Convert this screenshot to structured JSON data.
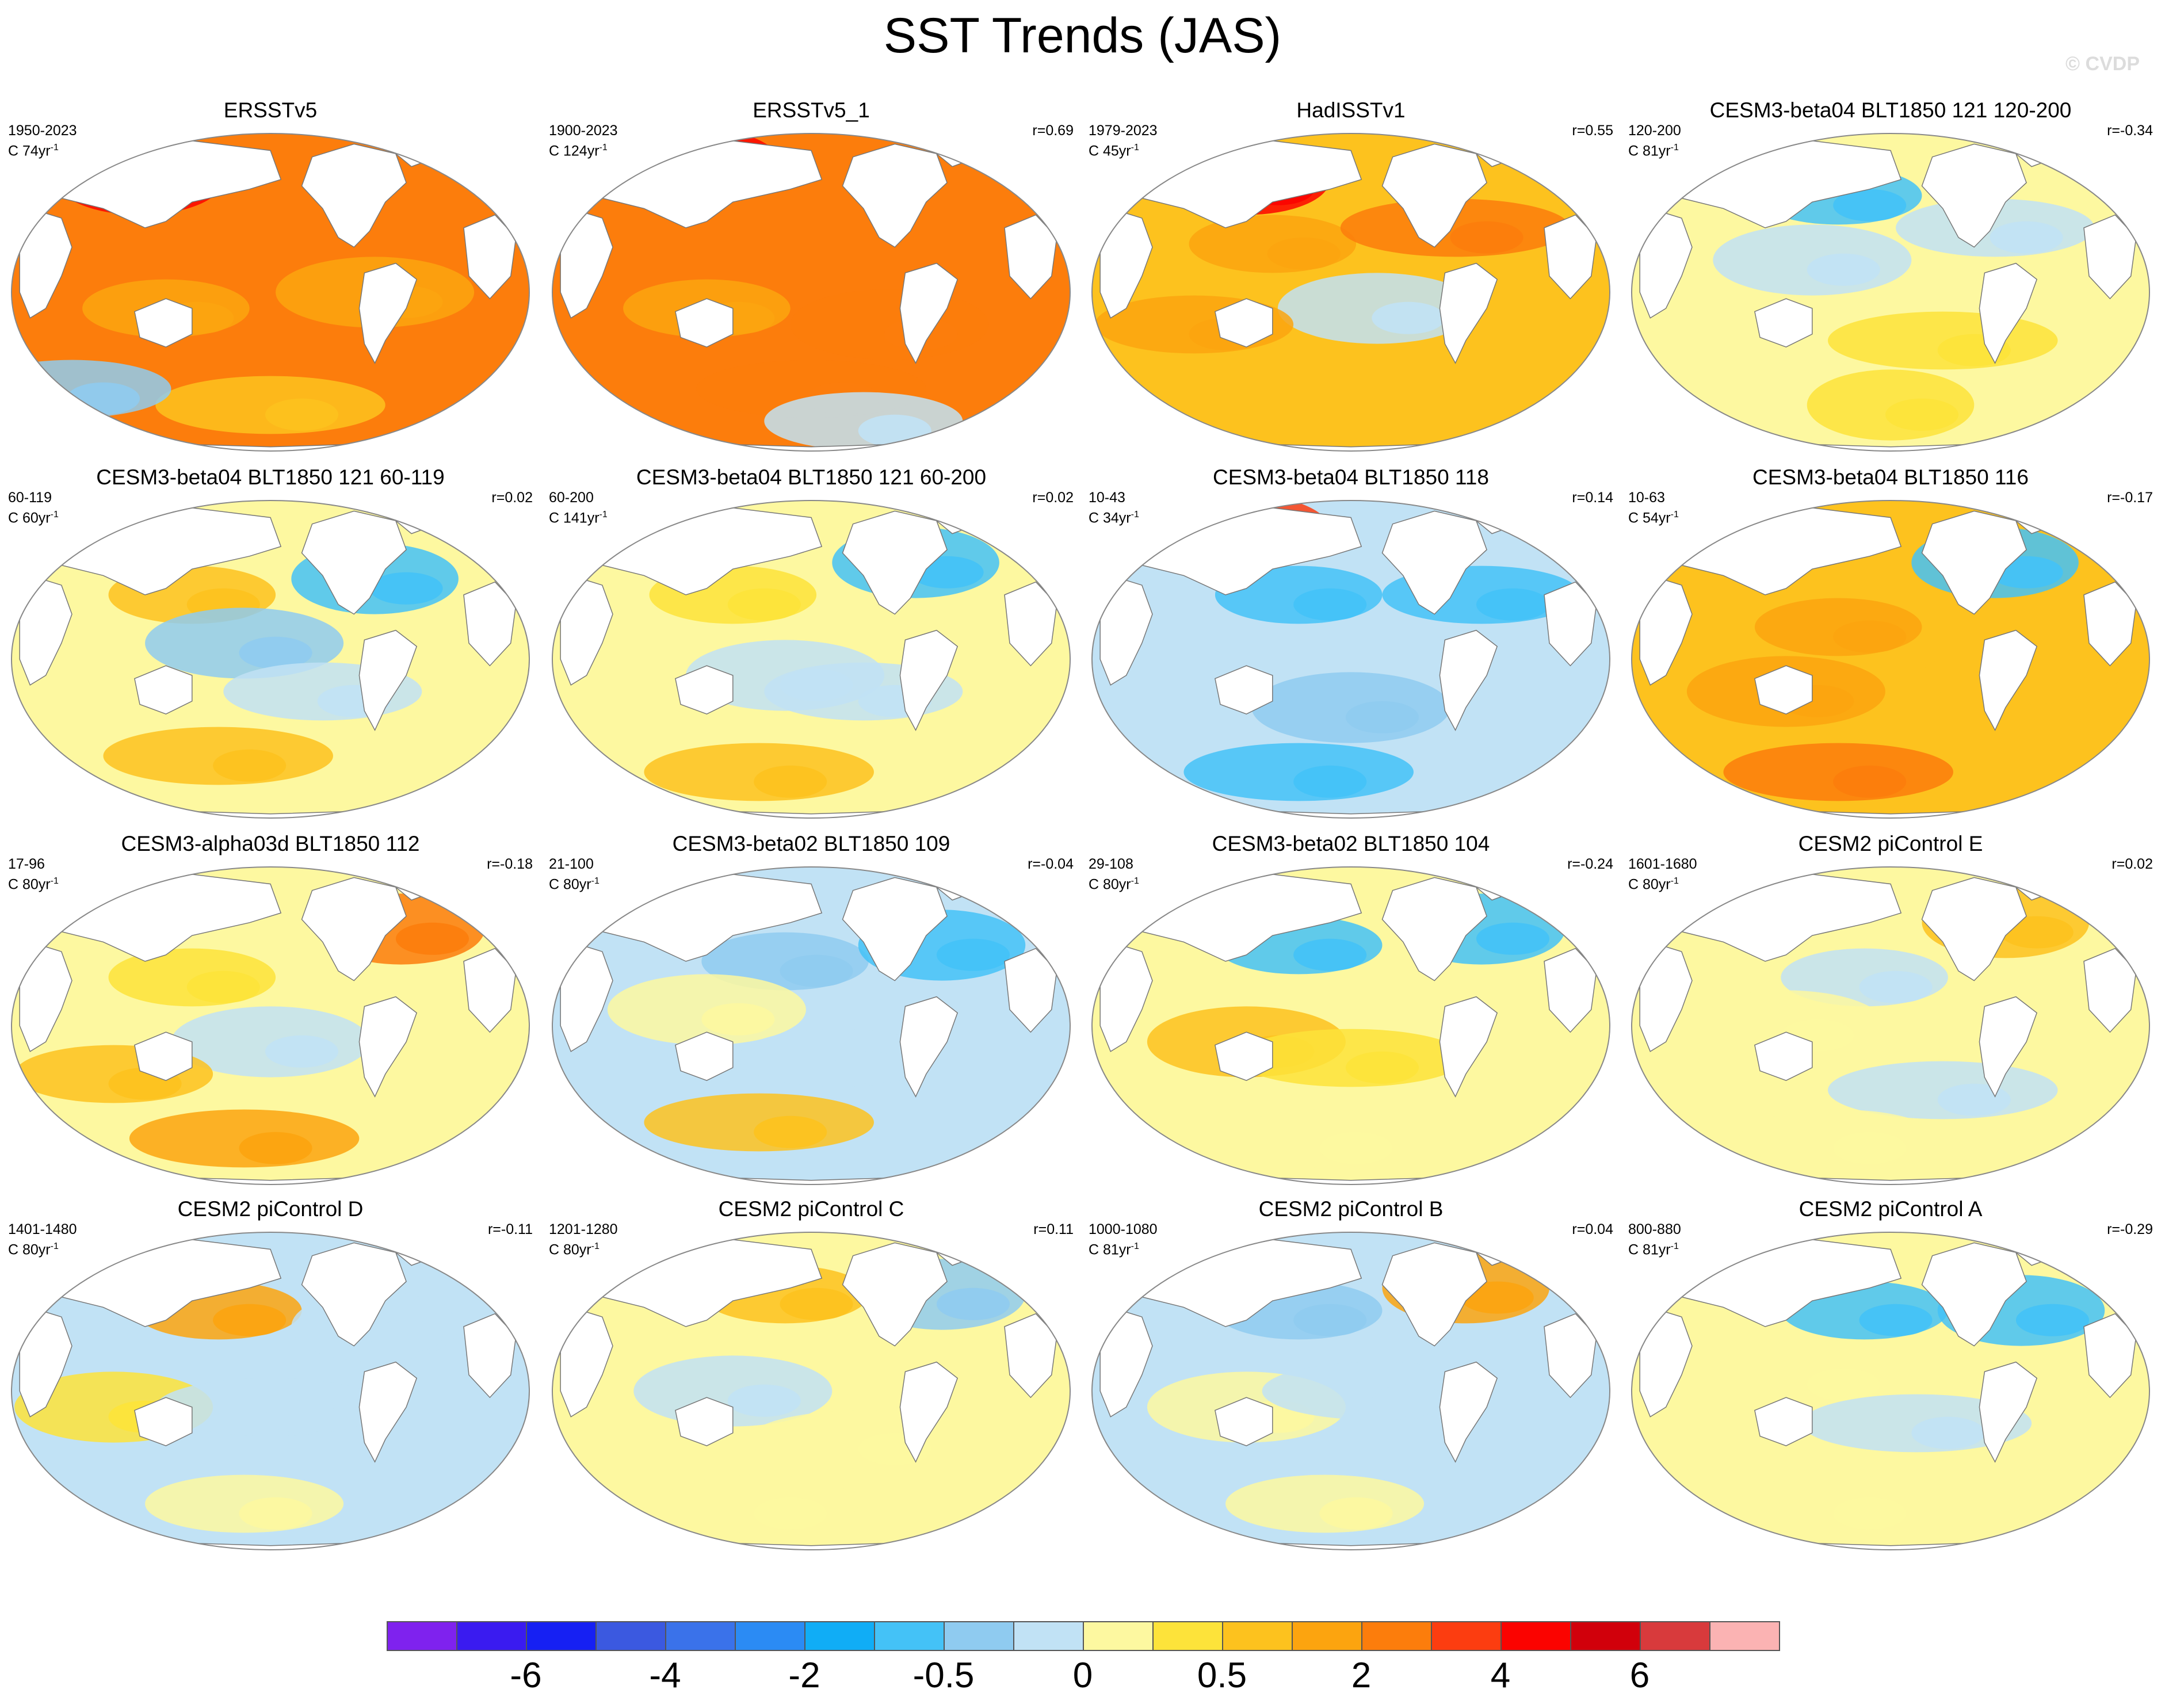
{
  "title": "SST Trends (JAS)",
  "watermark": "© CVDP",
  "palette": [
    "#7f22ee",
    "#3a1bf0",
    "#1620f3",
    "#3b59e0",
    "#3a72ea",
    "#2b8bf4",
    "#10adf6",
    "#44c2f7",
    "#8fcbf0",
    "#c1e2f5",
    "#fdf8a0",
    "#fde33a",
    "#fdc21e",
    "#fca40f",
    "#fc7d0c",
    "#fc3d10",
    "#fb0300",
    "#d1000b",
    "#d83a3c",
    "#fbb3b3"
  ],
  "colorbar_labels": [
    "-6",
    "-4",
    "-2",
    "-0.5",
    "0",
    "0.5",
    "2",
    "4",
    "6"
  ],
  "panels": [
    {
      "title": "ERSSTv5",
      "years": "1950-2023",
      "count": "C 74yr",
      "r": "",
      "base": 14,
      "blobs": [
        [
          0.3,
          0.55,
          13
        ],
        [
          0.7,
          0.5,
          13
        ],
        [
          0.5,
          0.85,
          12
        ],
        [
          0.25,
          0.15,
          16
        ],
        [
          0.12,
          0.8,
          8
        ]
      ]
    },
    {
      "title": "ERSSTv5_1",
      "years": "1900-2023",
      "count": "C 124yr",
      "r": "r=0.69",
      "base": 14,
      "blobs": [
        [
          0.3,
          0.55,
          13
        ],
        [
          0.65,
          0.6,
          14
        ],
        [
          0.5,
          0.8,
          14
        ],
        [
          0.28,
          0.1,
          16
        ],
        [
          0.6,
          0.9,
          9
        ]
      ]
    },
    {
      "title": "HadISSTv1",
      "years": "1979-2023",
      "count": "C 45yr",
      "r": "r=0.55",
      "base": 12,
      "blobs": [
        [
          0.35,
          0.35,
          13
        ],
        [
          0.55,
          0.55,
          9
        ],
        [
          0.7,
          0.3,
          14
        ],
        [
          0.3,
          0.15,
          16
        ],
        [
          0.2,
          0.6,
          13
        ]
      ]
    },
    {
      "title": "CESM3-beta04 BLT1850 121 120-200",
      "years": "120-200",
      "count": "C 81yr",
      "r": "r=-0.34",
      "base": 10,
      "blobs": [
        [
          0.4,
          0.2,
          7
        ],
        [
          0.35,
          0.4,
          9
        ],
        [
          0.6,
          0.65,
          11
        ],
        [
          0.5,
          0.85,
          11
        ],
        [
          0.7,
          0.3,
          9
        ]
      ]
    },
    {
      "title": "CESM3-beta04 BLT1850 121 60-119",
      "years": "60-119",
      "count": "C 60yr",
      "r": "r=0.02",
      "base": 10,
      "blobs": [
        [
          0.35,
          0.3,
          12
        ],
        [
          0.45,
          0.45,
          8
        ],
        [
          0.4,
          0.8,
          12
        ],
        [
          0.7,
          0.25,
          7
        ],
        [
          0.6,
          0.6,
          9
        ]
      ]
    },
    {
      "title": "CESM3-beta04 BLT1850 121 60-200",
      "years": "60-200",
      "count": "C 141yr",
      "r": "r=0.02",
      "base": 10,
      "blobs": [
        [
          0.35,
          0.3,
          11
        ],
        [
          0.45,
          0.55,
          9
        ],
        [
          0.4,
          0.85,
          12
        ],
        [
          0.7,
          0.2,
          7
        ],
        [
          0.6,
          0.6,
          9
        ]
      ]
    },
    {
      "title": "CESM3-beta04 BLT1850 118",
      "years": "10-43",
      "count": "C 34yr",
      "r": "r=0.14",
      "base": 9,
      "blobs": [
        [
          0.4,
          0.3,
          7
        ],
        [
          0.5,
          0.65,
          8
        ],
        [
          0.4,
          0.85,
          7
        ],
        [
          0.3,
          0.1,
          15
        ],
        [
          0.75,
          0.3,
          7
        ]
      ]
    },
    {
      "title": "CESM3-beta04 BLT1850 116",
      "years": "10-63",
      "count": "C 54yr",
      "r": "r=-0.17",
      "base": 12,
      "blobs": [
        [
          0.4,
          0.4,
          13
        ],
        [
          0.3,
          0.6,
          13
        ],
        [
          0.4,
          0.85,
          14
        ],
        [
          0.7,
          0.2,
          7
        ],
        [
          0.75,
          0.55,
          12
        ]
      ]
    },
    {
      "title": "CESM3-alpha03d BLT1850 112",
      "years": "17-96",
      "count": "C 80yr",
      "r": "r=-0.18",
      "base": 10,
      "blobs": [
        [
          0.35,
          0.35,
          11
        ],
        [
          0.5,
          0.55,
          9
        ],
        [
          0.45,
          0.85,
          13
        ],
        [
          0.75,
          0.2,
          14
        ],
        [
          0.2,
          0.65,
          12
        ]
      ]
    },
    {
      "title": "CESM3-beta02 BLT1850 109",
      "years": "21-100",
      "count": "C 80yr",
      "r": "r=-0.04",
      "base": 9,
      "blobs": [
        [
          0.45,
          0.3,
          8
        ],
        [
          0.3,
          0.45,
          10
        ],
        [
          0.4,
          0.8,
          12
        ],
        [
          0.75,
          0.25,
          7
        ],
        [
          0.55,
          0.6,
          9
        ]
      ]
    },
    {
      "title": "CESM3-beta02 BLT1850 104",
      "years": "29-108",
      "count": "C 80yr",
      "r": "r=-0.24",
      "base": 10,
      "blobs": [
        [
          0.4,
          0.25,
          7
        ],
        [
          0.3,
          0.55,
          12
        ],
        [
          0.5,
          0.6,
          11
        ],
        [
          0.75,
          0.2,
          7
        ],
        [
          0.45,
          0.85,
          10
        ]
      ]
    },
    {
      "title": "CESM2 piControl E",
      "years": "1601-1680",
      "count": "C 80yr",
      "r": "r=0.02",
      "base": 10,
      "blobs": [
        [
          0.45,
          0.35,
          9
        ],
        [
          0.3,
          0.5,
          10
        ],
        [
          0.6,
          0.7,
          9
        ],
        [
          0.72,
          0.18,
          12
        ],
        [
          0.4,
          0.85,
          10
        ]
      ]
    },
    {
      "title": "CESM2 piControl D",
      "years": "1401-1480",
      "count": "C 80yr",
      "r": "r=-0.11",
      "base": 9,
      "blobs": [
        [
          0.4,
          0.25,
          13
        ],
        [
          0.2,
          0.55,
          11
        ],
        [
          0.5,
          0.55,
          9
        ],
        [
          0.7,
          0.3,
          9
        ],
        [
          0.45,
          0.85,
          10
        ]
      ]
    },
    {
      "title": "CESM2 piControl C",
      "years": "1201-1280",
      "count": "C 80yr",
      "r": "r=0.11",
      "base": 10,
      "blobs": [
        [
          0.45,
          0.2,
          12
        ],
        [
          0.35,
          0.5,
          9
        ],
        [
          0.6,
          0.65,
          10
        ],
        [
          0.75,
          0.2,
          8
        ],
        [
          0.4,
          0.85,
          10
        ]
      ]
    },
    {
      "title": "CESM2 piControl B",
      "years": "1000-1080",
      "count": "C 81yr",
      "r": "r=0.04",
      "base": 9,
      "blobs": [
        [
          0.4,
          0.25,
          8
        ],
        [
          0.3,
          0.55,
          10
        ],
        [
          0.55,
          0.5,
          9
        ],
        [
          0.72,
          0.18,
          13
        ],
        [
          0.45,
          0.85,
          10
        ]
      ]
    },
    {
      "title": "CESM2 piControl A",
      "years": "800-880",
      "count": "C 81yr",
      "r": "r=-0.29",
      "base": 10,
      "blobs": [
        [
          0.45,
          0.25,
          7
        ],
        [
          0.35,
          0.45,
          10
        ],
        [
          0.55,
          0.6,
          9
        ],
        [
          0.75,
          0.25,
          7
        ],
        [
          0.4,
          0.85,
          10
        ]
      ]
    }
  ]
}
